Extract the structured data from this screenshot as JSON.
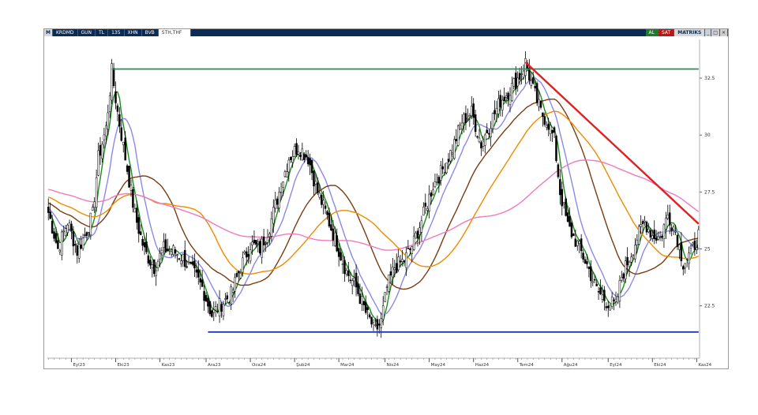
{
  "toolbar": {
    "logo": "M",
    "symbol": "KRDMD",
    "period": "GUN",
    "currency": "TL",
    "bars": "135",
    "tools": [
      "XHN",
      "BVB",
      "STH,THF"
    ],
    "buy": "AL",
    "sell": "SAT",
    "matrix": "MATRIKS",
    "window_buttons": [
      "_",
      "□",
      "×"
    ]
  },
  "chart_data": {
    "type": "candlestick",
    "title": "",
    "xlabel": "",
    "ylabel": "",
    "ylim": [
      20.2,
      34.2
    ],
    "y_ticks": [
      22.5,
      25,
      27.5,
      30,
      32.5
    ],
    "y_tick_labels": [
      "22.5",
      "25",
      "27.5",
      "30",
      "32.5"
    ],
    "x_tick_labels": [
      "Eyl23",
      "Eki23",
      "Kas23",
      "Ara23",
      "Oca24",
      "Şub24",
      "Mar24",
      "Nis24",
      "May24",
      "Haz24",
      "Tem24",
      "Ağu24",
      "Eyl24",
      "Eki24",
      "Kas24"
    ],
    "grid": false,
    "legend": "none",
    "anchors": [
      [
        0,
        26.6
      ],
      [
        5,
        25.0
      ],
      [
        10,
        26.2
      ],
      [
        15,
        24.9
      ],
      [
        20,
        25.8
      ],
      [
        23,
        26.5
      ],
      [
        26,
        29.0
      ],
      [
        30,
        30.3
      ],
      [
        33,
        32.8
      ],
      [
        36,
        31.0
      ],
      [
        40,
        29.0
      ],
      [
        45,
        26.5
      ],
      [
        50,
        24.9
      ],
      [
        55,
        24.2
      ],
      [
        60,
        25.0
      ],
      [
        65,
        24.9
      ],
      [
        70,
        24.6
      ],
      [
        75,
        24.0
      ],
      [
        80,
        23.3
      ],
      [
        85,
        22.1
      ],
      [
        90,
        22.6
      ],
      [
        95,
        23.0
      ],
      [
        100,
        24.2
      ],
      [
        105,
        25.2
      ],
      [
        110,
        25.0
      ],
      [
        115,
        26.0
      ],
      [
        120,
        27.5
      ],
      [
        125,
        29.0
      ],
      [
        130,
        29.5
      ],
      [
        135,
        29.0
      ],
      [
        140,
        27.5
      ],
      [
        145,
        26.4
      ],
      [
        150,
        25.2
      ],
      [
        155,
        24.0
      ],
      [
        160,
        23.3
      ],
      [
        165,
        22.2
      ],
      [
        170,
        21.4
      ],
      [
        173,
        21.8
      ],
      [
        176,
        23.3
      ],
      [
        180,
        24.2
      ],
      [
        185,
        24.5
      ],
      [
        190,
        25.3
      ],
      [
        195,
        26.5
      ],
      [
        200,
        27.8
      ],
      [
        205,
        28.5
      ],
      [
        210,
        29.4
      ],
      [
        215,
        30.6
      ],
      [
        220,
        31.0
      ],
      [
        225,
        29.6
      ],
      [
        230,
        30.6
      ],
      [
        235,
        31.5
      ],
      [
        240,
        32.0
      ],
      [
        245,
        32.6
      ],
      [
        248,
        33.2
      ],
      [
        252,
        32.0
      ],
      [
        256,
        31.0
      ],
      [
        260,
        30.5
      ],
      [
        263,
        29.8
      ],
      [
        266,
        27.5
      ],
      [
        270,
        26.0
      ],
      [
        275,
        25.2
      ],
      [
        280,
        24.3
      ],
      [
        285,
        23.2
      ],
      [
        290,
        22.7
      ],
      [
        295,
        22.5
      ],
      [
        298,
        23.8
      ],
      [
        302,
        24.6
      ],
      [
        306,
        25.5
      ],
      [
        310,
        26.2
      ],
      [
        314,
        25.6
      ],
      [
        318,
        25.5
      ],
      [
        322,
        26.5
      ],
      [
        326,
        25.8
      ],
      [
        330,
        24.4
      ],
      [
        334,
        24.8
      ],
      [
        338,
        25.6
      ]
    ],
    "moving_averages": [
      {
        "period": 5,
        "color": "#1a8a1a"
      },
      {
        "period": 13,
        "color": "#8a8ae6"
      },
      {
        "period": 34,
        "color": "#7a3c10"
      },
      {
        "period": 55,
        "color": "#f08a00"
      },
      {
        "period": 100,
        "color": "#f07ac0"
      }
    ],
    "trendlines": [
      {
        "name": "resistance",
        "from": [
          33,
          32.9
        ],
        "to": [
          338,
          32.9
        ],
        "color": "#2e8a5a"
      },
      {
        "name": "support",
        "from": [
          83,
          21.35
        ],
        "to": [
          338,
          21.35
        ],
        "color": "#2233bb"
      },
      {
        "name": "downtrend",
        "from": [
          248,
          33.2
        ],
        "to": [
          338,
          26.1
        ],
        "color": "#e02020"
      }
    ],
    "colors": {
      "up_candle_fill": "#ffffff",
      "down_candle_fill": "#000000",
      "candle_outline": "#000000",
      "toolbar_bg": "#0b2b57",
      "buy": "#1e7a2e",
      "sell": "#b81818"
    }
  }
}
